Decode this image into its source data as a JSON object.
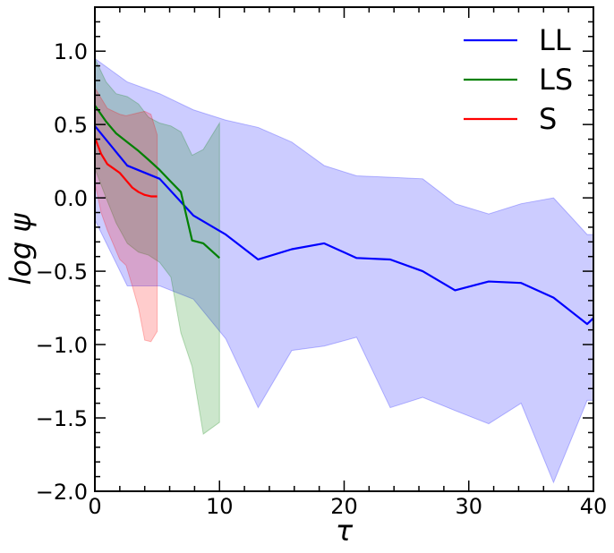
{
  "chart_data": {
    "type": "line",
    "xlabel": "τ",
    "ylabel": "log ψ",
    "xlim": [
      0,
      40
    ],
    "ylim": [
      -2.0,
      1.3
    ],
    "xticks": [
      0,
      10,
      20,
      30,
      40
    ],
    "xtick_labels": [
      "0",
      "10",
      "20",
      "30",
      "40"
    ],
    "yticks": [
      -2.0,
      -1.5,
      -1.0,
      -0.5,
      0.0,
      0.5,
      1.0
    ],
    "ytick_labels": [
      "−2.0",
      "−1.5",
      "−1.0",
      "−0.5",
      "0.0",
      "0.5",
      "1.0"
    ],
    "grid": false,
    "legend_position": "top-right",
    "series": [
      {
        "name": "LL",
        "color": "#0000ff",
        "x": [
          0,
          2.6,
          5.2,
          7.9,
          10.5,
          13.1,
          15.8,
          18.4,
          21.0,
          23.7,
          26.3,
          28.9,
          31.6,
          34.2,
          36.8,
          39.5,
          40
        ],
        "y": [
          0.49,
          0.22,
          0.13,
          -0.12,
          -0.25,
          -0.42,
          -0.35,
          -0.31,
          -0.41,
          -0.42,
          -0.5,
          -0.63,
          -0.57,
          -0.58,
          -0.68,
          -0.86,
          -0.82
        ],
        "band_upper": [
          0.95,
          0.79,
          0.71,
          0.6,
          0.53,
          0.48,
          0.38,
          0.22,
          0.15,
          0.14,
          0.13,
          -0.04,
          -0.11,
          -0.04,
          0.0,
          -0.25,
          -0.25
        ],
        "band_lower": [
          -0.15,
          -0.6,
          -0.6,
          -0.69,
          -0.96,
          -1.43,
          -1.04,
          -1.01,
          -0.95,
          -1.43,
          -1.36,
          -1.45,
          -1.54,
          -1.4,
          -1.94,
          -1.38,
          -1.38
        ],
        "band_color": "#0000ff",
        "band_alpha": 0.2
      },
      {
        "name": "LS",
        "color": "#008000",
        "x": [
          0,
          0.9,
          1.7,
          2.6,
          3.5,
          4.3,
          5.2,
          6.1,
          6.9,
          7.8,
          8.7,
          10.0
        ],
        "y": [
          0.63,
          0.52,
          0.44,
          0.38,
          0.32,
          0.26,
          0.19,
          0.11,
          0.04,
          -0.29,
          -0.31,
          -0.41
        ],
        "band_upper": [
          0.95,
          0.79,
          0.71,
          0.69,
          0.64,
          0.55,
          0.51,
          0.49,
          0.45,
          0.29,
          0.33,
          0.51
        ],
        "band_lower": [
          0.2,
          0.0,
          -0.17,
          -0.31,
          -0.37,
          -0.39,
          -0.44,
          -0.54,
          -0.92,
          -1.15,
          -1.61,
          -1.53
        ],
        "band_color": "#008000",
        "band_alpha": 0.2
      },
      {
        "name": "S",
        "color": "#ff0000",
        "x": [
          0,
          0.5,
          1.0,
          1.5,
          2.0,
          2.5,
          3.0,
          3.5,
          4.0,
          4.5,
          5.0
        ],
        "y": [
          0.41,
          0.3,
          0.23,
          0.2,
          0.17,
          0.12,
          0.07,
          0.04,
          0.02,
          0.01,
          0.01
        ],
        "band_upper": [
          0.75,
          0.68,
          0.61,
          0.59,
          0.57,
          0.56,
          0.57,
          0.58,
          0.59,
          0.57,
          0.43
        ],
        "band_lower": [
          0.1,
          -0.1,
          -0.22,
          -0.32,
          -0.42,
          -0.46,
          -0.6,
          -0.75,
          -0.97,
          -0.98,
          -0.91
        ],
        "band_color": "#ff0000",
        "band_alpha": 0.2
      }
    ]
  }
}
